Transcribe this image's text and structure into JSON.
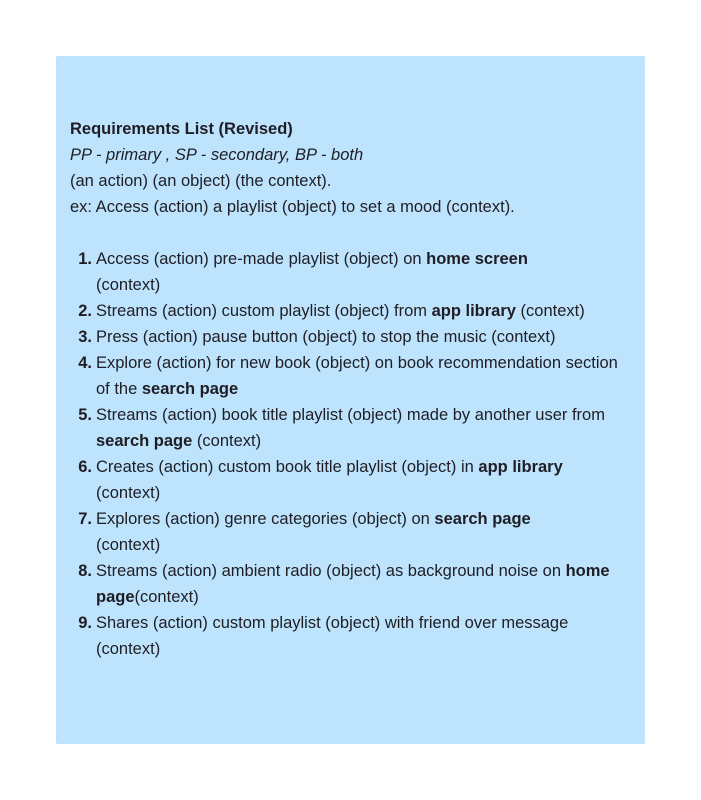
{
  "note": {
    "title": "Requirements List (Revised)",
    "legend": "PP - primary , SP - secondary, BP - both",
    "pattern": "(an action)  (an object) (the context).",
    "example": "ex: Access (action) a playlist (object) to set a mood (context).",
    "items": [
      {
        "num": "1.",
        "pre": "Access (action) pre-made playlist (object) on ",
        "bold": "home screen",
        "post": " (context)"
      },
      {
        "num": "2.",
        "pre": "Streams (action) custom playlist (object) from ",
        "bold": "app library",
        "post": " (context)"
      },
      {
        "num": "3.",
        "pre": "Press (action) pause button (object) to stop the music (context)",
        "bold": "",
        "post": ""
      },
      {
        "num": "4.",
        "pre": "Explore (action) for new book (object) on book recommendation section of the ",
        "bold": "search page",
        "post": ""
      },
      {
        "num": "5.",
        "pre": "Streams (action) book title playlist (object) made by another user from ",
        "bold": "search page",
        "post": " (context)"
      },
      {
        "num": "6.",
        "pre": "Creates (action) custom book title playlist (object) in ",
        "bold": "app library",
        "post": " (context)"
      },
      {
        "num": "7.",
        "pre": "Explores (action) genre categories (object) on ",
        "bold": "search page",
        "post": " (context)"
      },
      {
        "num": "8.",
        "pre": "Streams (action) ambient radio (object) as background noise on ",
        "bold": "home page",
        "post": "(context)"
      },
      {
        "num": "9.",
        "pre": "Shares (action) custom playlist (object) with friend over message (context)",
        "bold": "",
        "post": ""
      }
    ]
  },
  "colors": {
    "note_background": "#bde3fd",
    "text": "#1e1e24"
  }
}
